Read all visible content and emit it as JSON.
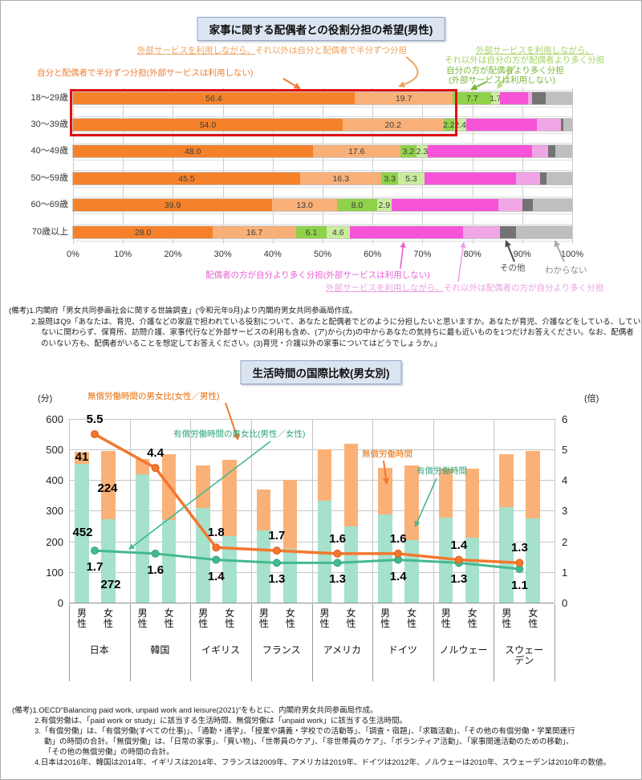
{
  "chart_data": [
    {
      "type": "bar",
      "stacked": true,
      "orientation": "horizontal",
      "title": "家事に関する配偶者との役割分担の希望(男性)",
      "unit": "%",
      "xlim": [
        0,
        100
      ],
      "x_ticks": [
        "0%",
        "10%",
        "20%",
        "30%",
        "40%",
        "50%",
        "60%",
        "70%",
        "80%",
        "90%",
        "100%"
      ],
      "categories": [
        "18〜29歳",
        "30〜39歳",
        "40〜49歳",
        "50〜59歳",
        "60〜69歳",
        "70歳以上"
      ],
      "series": [
        {
          "name": "自分と配偶者で半分ずつ分担(外部サービスは利用しない)",
          "color": "#F5822A",
          "labeled": true,
          "values": [
            56.4,
            54.0,
            48.0,
            45.5,
            39.9,
            28.0
          ]
        },
        {
          "name": "外部サービスを利用しながら、それ以外は自分と配偶者で半分ずつ分担",
          "color": "#F8B078",
          "labeled": true,
          "values": [
            19.7,
            20.2,
            17.6,
            16.3,
            13.0,
            16.7
          ]
        },
        {
          "name": "自分の方が配偶者より多く分担(外部サービスは利用しない)",
          "color": "#8FD24A",
          "labeled": true,
          "values": [
            7.7,
            2.2,
            3.2,
            3.3,
            8.0,
            6.1
          ]
        },
        {
          "name": "外部サービスを利用しながら、それ以外は自分の方が配偶者より多く分担",
          "color": "#C9EC9E",
          "labeled": true,
          "values": [
            1.7,
            2.4,
            2.3,
            5.3,
            2.9,
            4.6
          ]
        },
        {
          "name": "配偶者の方が自分より多く分担(外部サービスは利用しない)",
          "color": "#F653D8",
          "labeled": false,
          "estimated": true,
          "values": [
            5.6,
            14.2,
            20.8,
            18.3,
            21.4,
            22.8
          ]
        },
        {
          "name": "外部サービスを利用しながら、それ以外は配偶者の方が自分より多く分担",
          "color": "#F0A5E6",
          "labeled": false,
          "estimated": true,
          "values": [
            0.8,
            4.7,
            3.2,
            4.8,
            4.8,
            7.3
          ]
        },
        {
          "name": "その他",
          "color": "#737373",
          "labeled": false,
          "estimated": true,
          "values": [
            2.8,
            0.5,
            1.6,
            1.3,
            2.1,
            3.2
          ]
        },
        {
          "name": "わからない",
          "color": "#BFBFBF",
          "labeled": false,
          "estimated": true,
          "values": [
            5.4,
            1.8,
            3.3,
            5.2,
            7.9,
            11.3
          ]
        }
      ],
      "highlight_rows": [
        "18〜29歳",
        "30〜39歳"
      ],
      "annotations": {
        "half_ext_l1": "外部サービスを利用しながら、",
        "half_ext_l2": "それ以外は自分と配偶者で半分ずつ分担",
        "half_ext_color": "#ECA35F",
        "half_none": "自分と配偶者で半分ずつ分担(外部サービスは利用しない)",
        "half_none_color": "#ED7D31",
        "more_none_l1": "自分の方が配偶者より多く分担",
        "more_none_l2": "(外部サービスは利用しない)",
        "more_none_color": "#76B837",
        "more_ext_l1": "外部サービスを利用しながら、",
        "more_ext_l2": "それ以外は自分の方が配偶者より多く分担",
        "more_ext_color": "#A5D460",
        "spouse_none": "配偶者の方が自分より多く分担(外部サービスは利用しない)",
        "spouse_none_color": "#E85FD5",
        "spouse_ext_l1": "外部サービスを利用しながら、",
        "spouse_ext_l2": "それ以外は配偶者の方が自分より多く分担",
        "spouse_ext_color": "#EDA0E4",
        "other_label": "その他",
        "unknown_label": "わからない"
      },
      "notes": [
        {
          "indent": 0,
          "text": "(備考)1.内閣府「男女共同参画社会に関する世論調査」(令和元年9月)より内閣府男女共同参画局作成。"
        },
        {
          "indent": 1,
          "text": "2.設問はQ9「あなたは、育児、介護などの家庭で担われている役割について、あなたと配偶者でどのように分担したいと思いますか。あなたが育児、介護などをしている、してい"
        },
        {
          "indent": 2,
          "text": "ないに関わらず、保育所、訪問介護、家事代行など外部サービスの利用も含め、(ア)から(カ)の中からあなたの気持ちに最も近いものを1つだけお答えください。なお、配偶者"
        },
        {
          "indent": 2,
          "text": "のいない方も、配偶者がいることを想定してお答えください。(3)育児・介護以外の家事についてはどうでしょうか。」"
        }
      ]
    },
    {
      "type": "bar+line",
      "title": "生活時間の国際比較(男女別)",
      "unit_left": "(分)",
      "unit_right": "(倍)",
      "ylim_left": [
        0,
        600
      ],
      "ylim_right": [
        0,
        6
      ],
      "y_ticks_left": [
        "0",
        "100",
        "200",
        "300",
        "400",
        "500",
        "600"
      ],
      "y_ticks_right": [
        "0",
        "1",
        "2",
        "3",
        "4",
        "5",
        "6"
      ],
      "categories": [
        "日本",
        "韓国",
        "イギリス",
        "フランス",
        "アメリカ",
        "ドイツ",
        "ノルウェー",
        "スウェーデン"
      ],
      "sex_labels": [
        "男性",
        "女性"
      ],
      "bar_series": [
        {
          "name": "有償労働時間",
          "color": "#A5E1CB",
          "values_male": [
            452,
            419,
            309,
            235,
            334,
            289,
            277,
            313
          ],
          "values_female": [
            272,
            269,
            217,
            176,
            248,
            205,
            213,
            275
          ]
        },
        {
          "name": "無償労働時間",
          "color": "#FAB177",
          "values_male": [
            41,
            49,
            140,
            135,
            166,
            150,
            161,
            171
          ],
          "values_female": [
            224,
            215,
            249,
            224,
            272,
            242,
            225,
            220
          ]
        }
      ],
      "line_series": [
        {
          "name": "無償労働時間の男女比(女性／男性)",
          "color": "#F3772E",
          "values": [
            5.5,
            4.4,
            1.8,
            1.7,
            1.6,
            1.6,
            1.4,
            1.3
          ]
        },
        {
          "name": "有償労働時間の男女比(男性／女性)",
          "color": "#45B98E",
          "values": [
            1.7,
            1.6,
            1.4,
            1.3,
            1.3,
            1.4,
            1.3,
            1.1
          ]
        }
      ],
      "shown_bar_labels": {
        "japan_male_unpaid": "41",
        "japan_female_unpaid": "224",
        "japan_male_paid": "452",
        "japan_female_paid": "272"
      },
      "annotations": {
        "unpaid_ratio": "無償労働時間の男女比(女性／男性)",
        "unpaid_ratio_color": "#E36C0A",
        "paid_ratio": "有償労働時間の男女比(男性／女性)",
        "paid_ratio_color": "#2FA47E",
        "unpaid_time": "無償労働時間",
        "unpaid_time_color": "#E36C0A",
        "paid_time": "有償労働時間",
        "paid_time_color": "#2FA47E"
      },
      "notes": [
        {
          "indent": 0,
          "text": "(備考)1.OECD“Balancing paid work, unpaid work and leisure(2021)”をもとに、内閣府男女共同参画局作成。"
        },
        {
          "indent": 1,
          "text": "2.有償労働は、「paid work or study」に該当する生活時間、無償労働は「unpaid work」に該当する生活時間。"
        },
        {
          "indent": 1,
          "text": "3.「有償労働」は、「有償労働(すべての仕事)」、「通勤・通学」、「授業や講義・学校での活動等」、「調査・宿題」、「求職活動」、「その他の有償労働・学業関連行"
        },
        {
          "indent": 2,
          "text": "動」の時間の合計。「無償労働」は、「日常の家事」、「買い物」、「世帯員のケア」、「非世帯員のケア」、「ボランティア活動」、「家事関連活動のための移動」、"
        },
        {
          "indent": 2,
          "text": "「その他の無償労働」の時間の合計。"
        },
        {
          "indent": 1,
          "text": "4.日本は2016年、韓国は2014年、イギリスは2014年、フランスは2009年、アメリカは2019年、ドイツは2012年、ノルウェーは2010年、スウェーデンは2010年の数値。"
        }
      ]
    }
  ]
}
